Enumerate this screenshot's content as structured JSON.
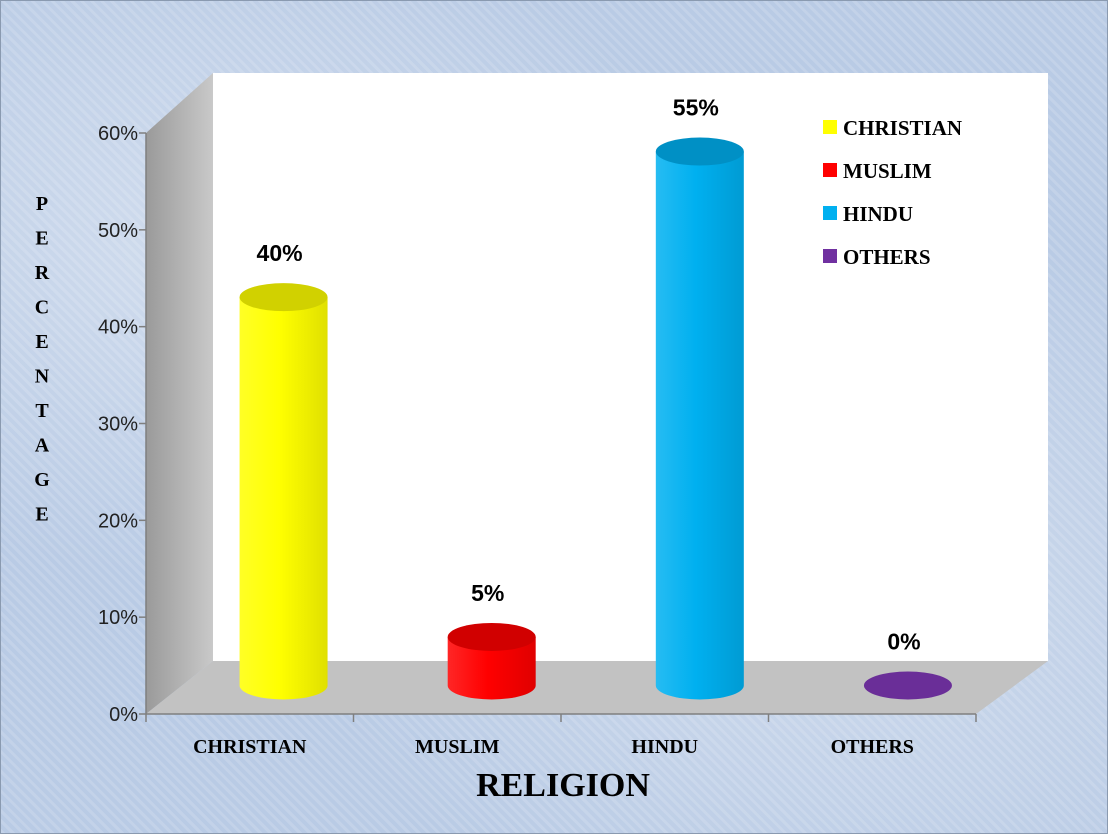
{
  "chart_data": {
    "type": "bar",
    "title": "",
    "xlabel": "RELIGION",
    "ylabel": "PERCENTAGE",
    "categories": [
      "CHRISTIAN",
      "MUSLIM",
      "HINDU",
      "OTHERS"
    ],
    "values": [
      40,
      5,
      55,
      0
    ],
    "data_labels": [
      "40%",
      "5%",
      "55%",
      "0%"
    ],
    "colors": [
      "#FFFF00",
      "#FF0000",
      "#00B0F0",
      "#7030A0"
    ],
    "ylim": [
      0,
      60
    ],
    "yticks": [
      "0%",
      "10%",
      "20%",
      "30%",
      "40%",
      "50%",
      "60%"
    ],
    "legend": {
      "position": "top-right",
      "entries": [
        "CHRISTIAN",
        "MUSLIM",
        "HINDU",
        "OTHERS"
      ]
    },
    "grid": false,
    "style": "3d-cylinder"
  }
}
